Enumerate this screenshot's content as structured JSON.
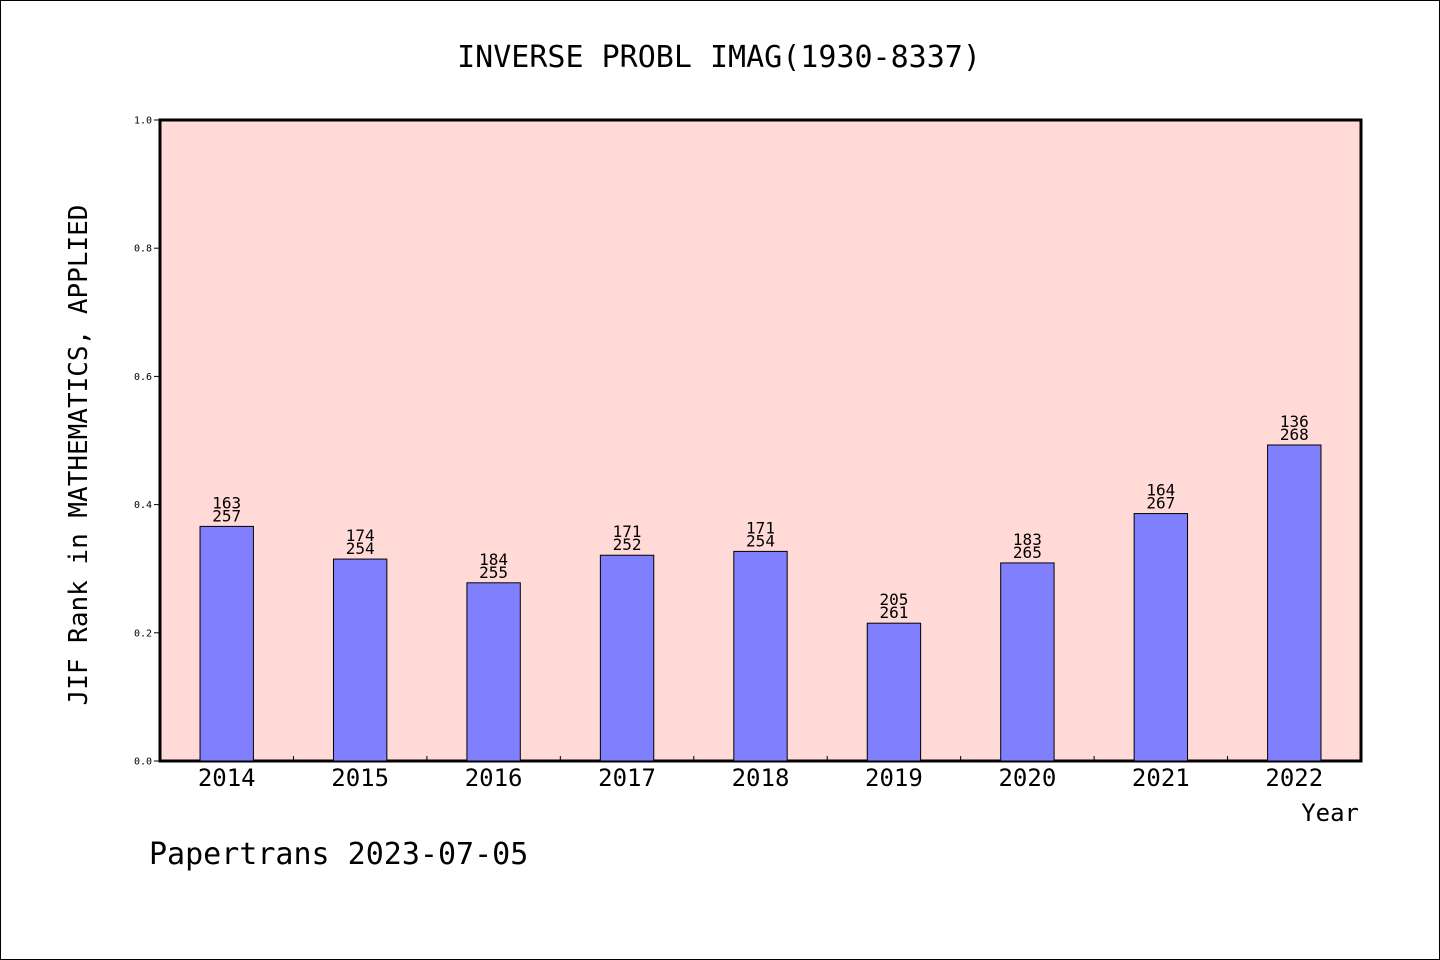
{
  "chart_data": {
    "type": "bar",
    "title": "INVERSE PROBL IMAG(1930-8337)",
    "xlabel": "Year",
    "ylabel": "JIF Rank in MATHEMATICS, APPLIED",
    "ylim": [
      0,
      1.0
    ],
    "yticks": [
      "0.0",
      "0.2",
      "0.4",
      "0.6",
      "0.8",
      "1.0"
    ],
    "categories": [
      "2014",
      "2015",
      "2016",
      "2017",
      "2018",
      "2019",
      "2020",
      "2021",
      "2022"
    ],
    "values": [
      0.366,
      0.315,
      0.278,
      0.321,
      0.327,
      0.215,
      0.309,
      0.386,
      0.493
    ],
    "rank": [
      "163",
      "174",
      "184",
      "171",
      "171",
      "205",
      "183",
      "164",
      "136"
    ],
    "total": [
      "257",
      "254",
      "255",
      "252",
      "254",
      "261",
      "265",
      "267",
      "268"
    ],
    "grid": false,
    "colors": {
      "plot_background": "#FFDAD7",
      "bar_fill": "#8080FF",
      "bar_stroke": "#000000"
    }
  },
  "footer": "Papertrans 2023-07-05"
}
